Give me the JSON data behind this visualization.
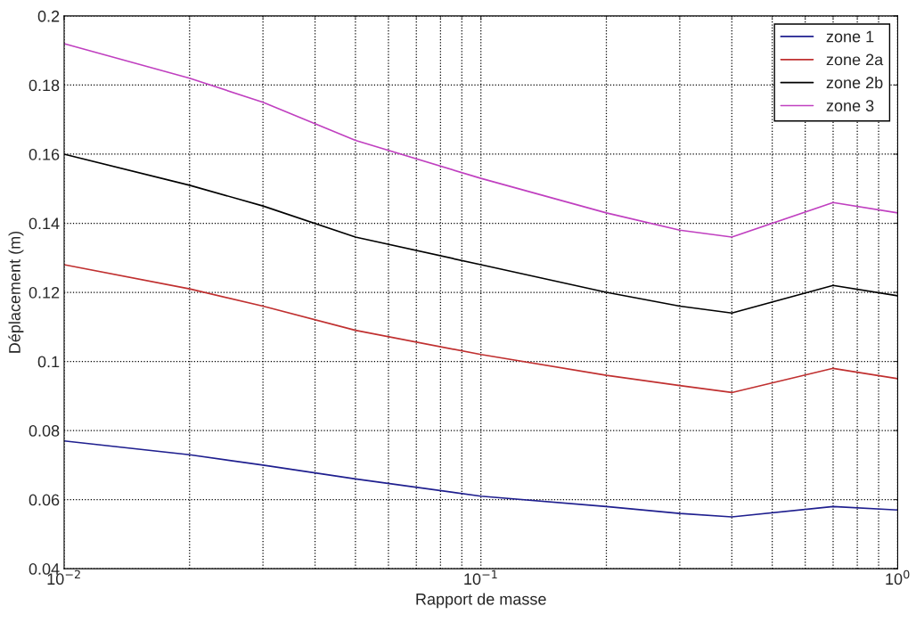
{
  "chart_data": {
    "type": "line",
    "xlabel": "Rapport de masse",
    "ylabel": "Déplacement (m)",
    "log": "x",
    "grid": true,
    "legend": "top right",
    "line_style": "solid",
    "x": [
      0.01,
      0.02,
      0.03,
      0.05,
      0.1,
      0.2,
      0.3,
      0.4,
      0.7,
      1.0
    ],
    "xlim": [
      0.01,
      1
    ],
    "xticks": [
      {
        "value": 0.01,
        "label": "10$^{−2}$"
      },
      {
        "value": 0.1,
        "label": "10$^{−1}$"
      },
      {
        "value": 1,
        "label": "10$^{0}$"
      }
    ],
    "ylim": [
      0.04,
      0.2
    ],
    "yticks": [
      0.04,
      0.06,
      0.08,
      0.1,
      0.12,
      0.14,
      0.16,
      0.18,
      0.2
    ],
    "series": [
      {
        "name": "zone 1",
        "color": "#1f1f8f",
        "values": [
          0.077,
          0.073,
          0.07,
          0.066,
          0.061,
          0.058,
          0.056,
          0.055,
          0.058,
          0.057
        ]
      },
      {
        "name": "zone 2a",
        "color": "#c03030",
        "values": [
          0.128,
          0.121,
          0.116,
          0.109,
          0.102,
          0.096,
          0.093,
          0.091,
          0.098,
          0.095
        ]
      },
      {
        "name": "zone 2b",
        "color": "#000000",
        "values": [
          0.16,
          0.151,
          0.145,
          0.136,
          0.128,
          0.12,
          0.116,
          0.114,
          0.122,
          0.119
        ]
      },
      {
        "name": "zone 3",
        "color": "#c040c0",
        "values": [
          0.192,
          0.182,
          0.175,
          0.164,
          0.153,
          0.143,
          0.138,
          0.136,
          0.146,
          0.143
        ]
      }
    ]
  }
}
